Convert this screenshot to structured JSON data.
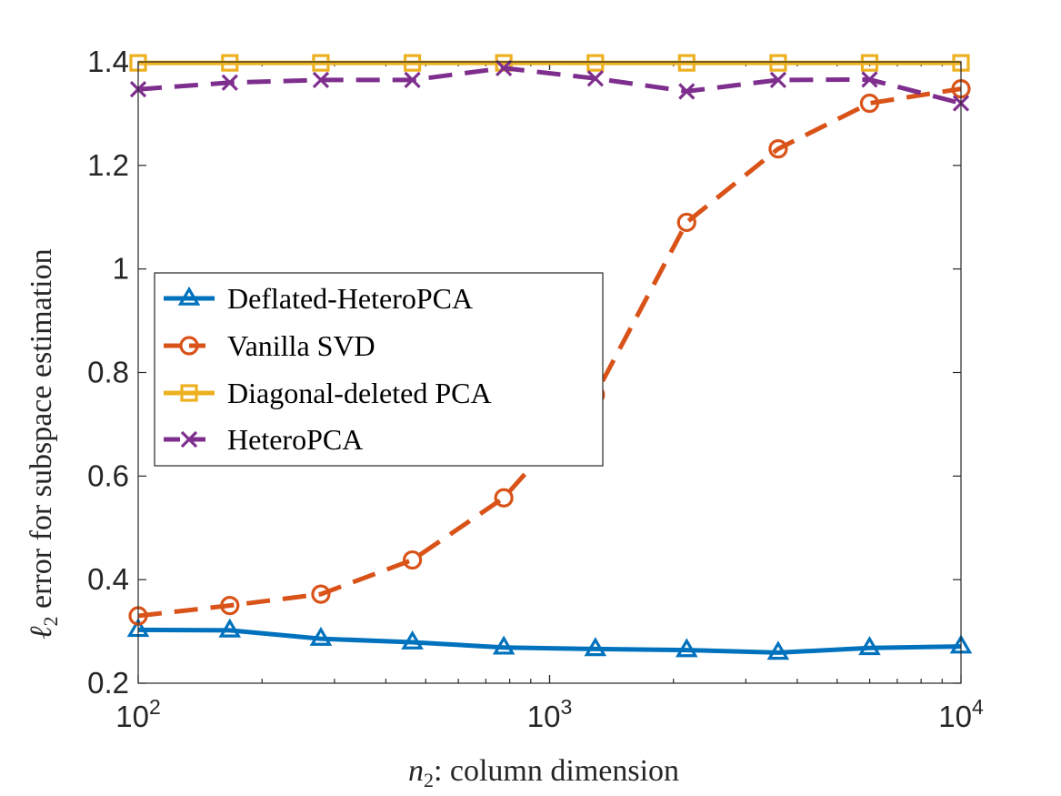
{
  "chart_data": {
    "type": "line",
    "xscale": "log",
    "xlim": [
      100,
      10000
    ],
    "ylim": [
      0.2,
      1.4
    ],
    "xticks": [
      {
        "value": 100,
        "base": "10",
        "exp": "2"
      },
      {
        "value": 1000,
        "base": "10",
        "exp": "3"
      },
      {
        "value": 10000,
        "base": "10",
        "exp": "4"
      }
    ],
    "yticks": [
      {
        "value": 0.2,
        "label": "0.2"
      },
      {
        "value": 0.4,
        "label": "0.4"
      },
      {
        "value": 0.6,
        "label": "0.6"
      },
      {
        "value": 0.8,
        "label": "0.8"
      },
      {
        "value": 1.0,
        "label": "1"
      },
      {
        "value": 1.2,
        "label": "1.2"
      },
      {
        "value": 1.4,
        "label": "1.4"
      }
    ],
    "xlabel": {
      "var": "n",
      "sub": "2",
      "rest": ": column dimension"
    },
    "ylabel": {
      "var": "ℓ",
      "sub": "2",
      "rest": " error for subspace estimation"
    },
    "legend_position": "center-left",
    "x": [
      100,
      167,
      278,
      464,
      774,
      1292,
      2154,
      3594,
      5995,
      10000
    ],
    "series": [
      {
        "name": "Deflated-HeteroPCA",
        "color": "#0072BD",
        "marker": "triangle",
        "dashed": false,
        "values": [
          0.303,
          0.302,
          0.286,
          0.279,
          0.269,
          0.266,
          0.264,
          0.259,
          0.268,
          0.271
        ]
      },
      {
        "name": "Vanilla SVD",
        "color": "#D95319",
        "marker": "circle",
        "dashed": true,
        "values": [
          0.33,
          0.35,
          0.372,
          0.438,
          0.558,
          0.757,
          1.09,
          1.232,
          1.32,
          1.348
        ]
      },
      {
        "name": "Diagonal-deleted PCA",
        "color": "#EDB120",
        "marker": "square",
        "dashed": false,
        "values": [
          1.398,
          1.398,
          1.398,
          1.398,
          1.398,
          1.398,
          1.398,
          1.398,
          1.398,
          1.398
        ]
      },
      {
        "name": "HeteroPCA",
        "color": "#7E2F8E",
        "marker": "x",
        "dashed": true,
        "values": [
          1.347,
          1.36,
          1.365,
          1.365,
          1.388,
          1.368,
          1.343,
          1.365,
          1.366,
          1.32
        ]
      }
    ]
  }
}
